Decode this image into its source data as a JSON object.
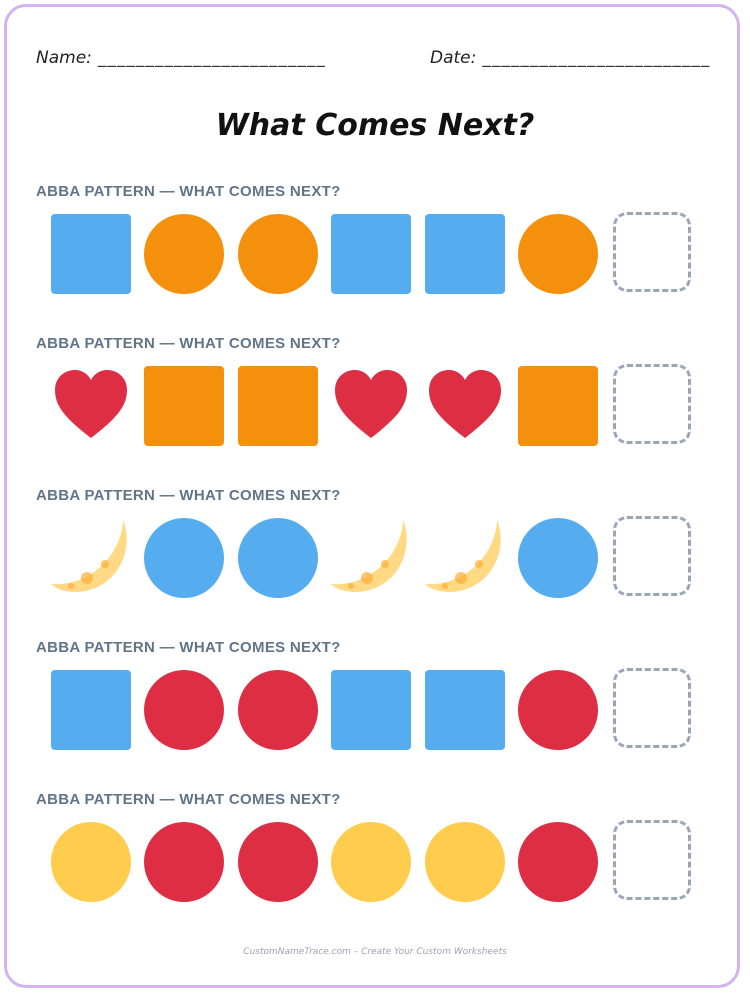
{
  "header": {
    "name_label": "Name:",
    "name_blank": "________________________",
    "date_label": "Date:",
    "date_blank": "________________________"
  },
  "title": "What Comes Next?",
  "rows": [
    {
      "label": "ABBA PATTERN — WHAT COMES NEXT?",
      "shapes": [
        "blue-square",
        "orange-circle",
        "orange-circle",
        "blue-square",
        "blue-square",
        "orange-circle"
      ]
    },
    {
      "label": "ABBA PATTERN — WHAT COMES NEXT?",
      "shapes": [
        "red-heart",
        "orange-square",
        "orange-square",
        "red-heart",
        "red-heart",
        "orange-square"
      ]
    },
    {
      "label": "ABBA PATTERN — WHAT COMES NEXT?",
      "shapes": [
        "yellow-crescent-moon",
        "blue-circle",
        "blue-circle",
        "yellow-crescent-moon",
        "yellow-crescent-moon",
        "blue-circle"
      ]
    },
    {
      "label": "ABBA PATTERN — WHAT COMES NEXT?",
      "shapes": [
        "blue-square",
        "red-circle",
        "red-circle",
        "blue-square",
        "blue-square",
        "red-circle"
      ]
    },
    {
      "label": "ABBA PATTERN — WHAT COMES NEXT?",
      "shapes": [
        "yellow-circle",
        "red-circle",
        "red-circle",
        "yellow-circle",
        "yellow-circle",
        "red-circle"
      ]
    }
  ],
  "colors": {
    "blue": "#55acee",
    "orange": "#f4900c",
    "red": "#dd2e44",
    "yellow": "#ffcc4d",
    "moon": "#ffd983",
    "moon_spot": "#ffac33",
    "dashed_box": "#9aa6b8",
    "label": "#62748a",
    "border": "#d3b3f5"
  },
  "footer": "CustomNameTrace.com – Create Your Custom Worksheets"
}
